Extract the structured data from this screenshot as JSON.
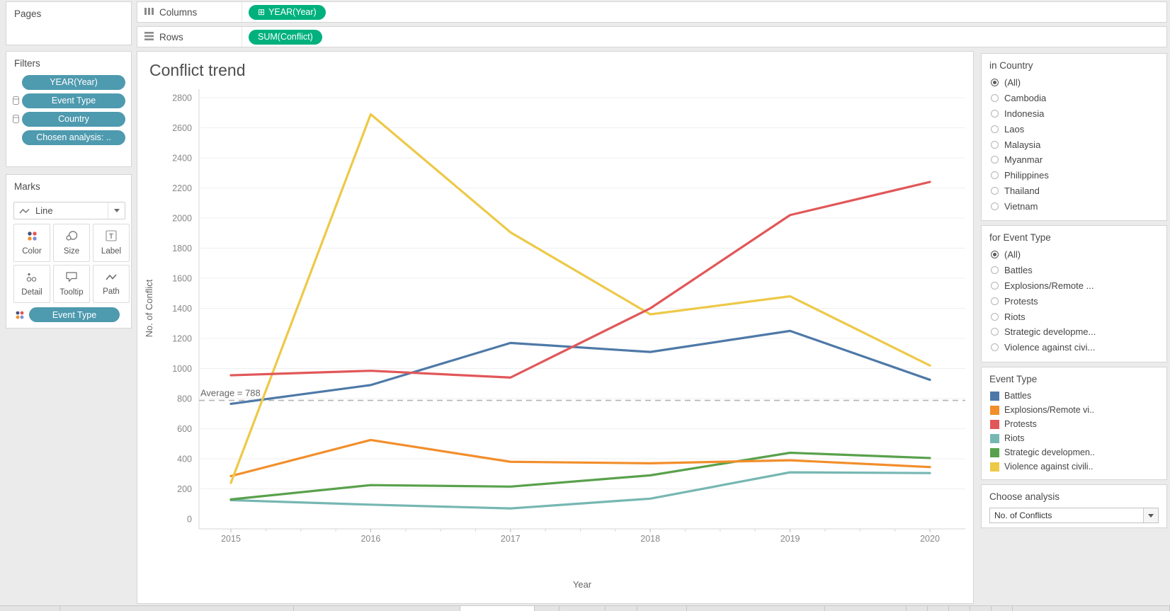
{
  "app_colors": {
    "pill_blue": "#4e9aaf",
    "pill_green": "#00b17e",
    "avg_line": "#b3b3b3"
  },
  "pages": {
    "title": "Pages"
  },
  "shelves": {
    "columns_label": "Columns",
    "columns_pill": "YEAR(Year)",
    "rows_label": "Rows",
    "rows_pill": "SUM(Conflict)"
  },
  "filters": {
    "title": "Filters",
    "pills": [
      {
        "label": "YEAR(Year)",
        "icon": false
      },
      {
        "label": "Event Type",
        "icon": true
      },
      {
        "label": "Country",
        "icon": true
      },
      {
        "label": "Chosen analysis: ..",
        "icon": false
      }
    ]
  },
  "marks": {
    "title": "Marks",
    "mark_type": "Line",
    "buttons": [
      {
        "label": "Color",
        "icon": "color-icon"
      },
      {
        "label": "Size",
        "icon": "size-icon"
      },
      {
        "label": "Label",
        "icon": "label-icon"
      },
      {
        "label": "Detail",
        "icon": "detail-icon"
      },
      {
        "label": "Tooltip",
        "icon": "tooltip-icon"
      },
      {
        "label": "Path",
        "icon": "path-icon"
      }
    ],
    "pill": "Event Type"
  },
  "chart_data": {
    "type": "line",
    "title": "Conflict trend",
    "xlabel": "Year",
    "ylabel": "No. of Conflict",
    "x": [
      2015,
      2016,
      2017,
      2018,
      2019,
      2020
    ],
    "ylim": [
      0,
      2800
    ],
    "ytick_step": 200,
    "grid": true,
    "legend_position": "right",
    "average_line": {
      "value": 788,
      "label": "Average = 788"
    },
    "series": [
      {
        "name": "Battles",
        "color": "#4e79a7",
        "values": [
          765,
          890,
          1170,
          1110,
          1250,
          925
        ]
      },
      {
        "name": "Explosions/Remote violence",
        "color": "#f28e2b",
        "values": [
          285,
          525,
          380,
          370,
          390,
          345
        ]
      },
      {
        "name": "Protests",
        "color": "#e15759",
        "values": [
          955,
          985,
          940,
          1400,
          2020,
          2240
        ]
      },
      {
        "name": "Riots",
        "color": "#76b7b2",
        "values": [
          125,
          95,
          70,
          135,
          310,
          305
        ]
      },
      {
        "name": "Strategic developments",
        "color": "#59a14c",
        "values": [
          130,
          225,
          215,
          290,
          440,
          405
        ]
      },
      {
        "name": "Violence against civilians",
        "color": "#edc948",
        "values": [
          240,
          2690,
          1905,
          1360,
          1480,
          1020
        ]
      }
    ],
    "draw_order": [
      0,
      3,
      4,
      1,
      5,
      2
    ]
  },
  "country_card": {
    "title": "in Country",
    "options": [
      {
        "label": "(All)",
        "selected": true
      },
      {
        "label": "Cambodia",
        "selected": false
      },
      {
        "label": "Indonesia",
        "selected": false
      },
      {
        "label": "Laos",
        "selected": false
      },
      {
        "label": "Malaysia",
        "selected": false
      },
      {
        "label": "Myanmar",
        "selected": false
      },
      {
        "label": "Philippines",
        "selected": false
      },
      {
        "label": "Thailand",
        "selected": false
      },
      {
        "label": "Vietnam",
        "selected": false
      }
    ]
  },
  "event_filter_card": {
    "title": "for Event Type",
    "options": [
      {
        "label": "(All)",
        "selected": true
      },
      {
        "label": "Battles",
        "selected": false
      },
      {
        "label": "Explosions/Remote ...",
        "selected": false
      },
      {
        "label": "Protests",
        "selected": false
      },
      {
        "label": "Riots",
        "selected": false
      },
      {
        "label": "Strategic developme...",
        "selected": false
      },
      {
        "label": "Violence against civi...",
        "selected": false
      }
    ]
  },
  "legend_card": {
    "title": "Event Type",
    "items": [
      {
        "label": "Battles",
        "color": "#4e79a7"
      },
      {
        "label": "Explosions/Remote vi..",
        "color": "#f28e2b"
      },
      {
        "label": "Protests",
        "color": "#e15759"
      },
      {
        "label": "Riots",
        "color": "#76b7b2"
      },
      {
        "label": "Strategic developmen..",
        "color": "#59a14c"
      },
      {
        "label": "Violence against civili..",
        "color": "#edc948"
      }
    ]
  },
  "analysis_card": {
    "title": "Choose analysis",
    "value": "No. of Conflicts"
  }
}
